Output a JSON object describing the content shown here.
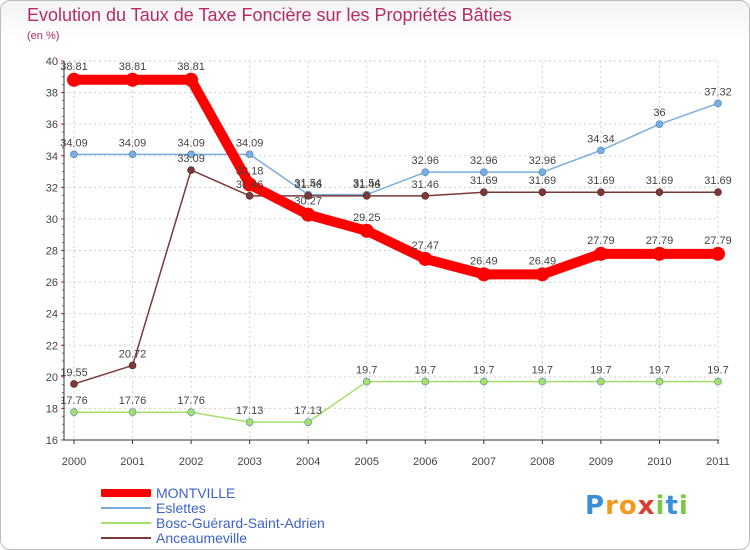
{
  "chart_data": {
    "type": "line",
    "title": "Evolution du Taux de Taxe Foncière sur les Propriétés Bâties",
    "subtitle": "(en %)",
    "categories": [
      "2000",
      "2001",
      "2002",
      "2003",
      "2004",
      "2005",
      "2006",
      "2007",
      "2008",
      "2009",
      "2010",
      "2011"
    ],
    "ylim": [
      16,
      40
    ],
    "yticks": [
      16,
      18,
      20,
      22,
      24,
      26,
      28,
      30,
      32,
      34,
      36,
      38,
      40
    ],
    "grid": true,
    "series": [
      {
        "name": "MONTVILLE",
        "color": "#ff0000",
        "values": [
          38.81,
          38.81,
          38.81,
          32.18,
          30.27,
          29.25,
          27.47,
          26.49,
          26.49,
          27.79,
          27.79,
          27.79
        ],
        "labels": [
          "38.81",
          "38.81",
          "38.81",
          "32.18",
          "30.27",
          "29.25",
          "27.47",
          "26.49",
          "26.49",
          "27.79",
          "27.79",
          "27.79"
        ]
      },
      {
        "name": "Eslettes",
        "color": "#7aaee0",
        "values": [
          34.09,
          34.09,
          34.09,
          34.09,
          31.54,
          31.54,
          32.96,
          32.96,
          32.96,
          34.34,
          36,
          37.32
        ],
        "labels": [
          "34.09",
          "34.09",
          "34.09",
          "34.09",
          "31.54",
          "31.54",
          "32.96",
          "32.96",
          "32.96",
          "34.34",
          "36",
          "37.32"
        ]
      },
      {
        "name": "Bosc-Guérard-Saint-Adrien",
        "color": "#a6e06a",
        "values": [
          17.76,
          17.76,
          17.76,
          17.13,
          17.13,
          19.7,
          19.7,
          19.7,
          19.7,
          19.7,
          19.7,
          19.7
        ],
        "labels": [
          "17.76",
          "17.76",
          "17.76",
          "17.13",
          "17.13",
          "19.7",
          "19.7",
          "19.7",
          "19.7",
          "19.7",
          "19.7",
          "19.7"
        ]
      },
      {
        "name": "Anceaumeville",
        "color": "#7a3a3a",
        "values": [
          19.55,
          20.72,
          33.09,
          31.46,
          31.46,
          31.46,
          31.46,
          31.69,
          31.69,
          31.69,
          31.69,
          31.69
        ],
        "labels": [
          "19.55",
          "20.72",
          "33.09",
          "31.46",
          "31.46",
          "31.46",
          "31.46",
          "31.69",
          "31.69",
          "31.69",
          "31.69",
          "31.69"
        ]
      }
    ]
  },
  "logo": {
    "letters": [
      "P",
      "r",
      "o",
      "x",
      "i",
      "t",
      "i"
    ]
  }
}
